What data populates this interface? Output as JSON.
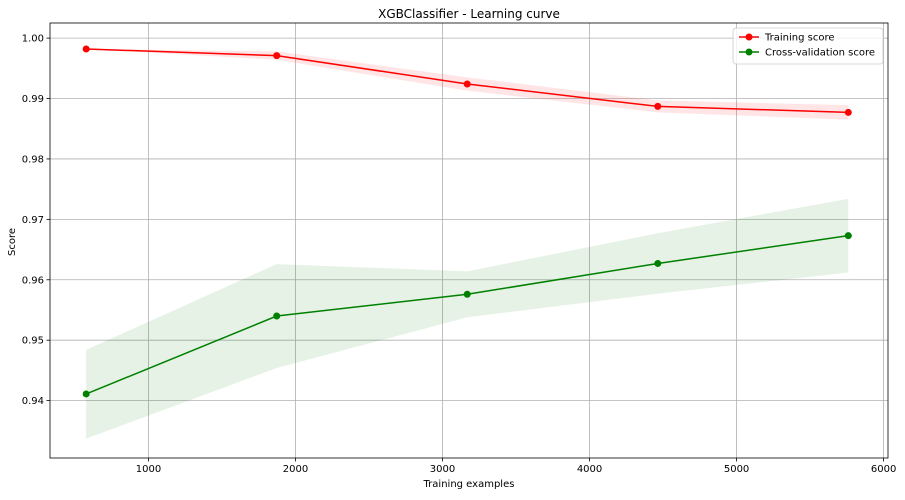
{
  "chart_data": {
    "type": "line",
    "title": "XGBClassifier - Learning curve",
    "xlabel": "Training examples",
    "ylabel": "Score",
    "xlim": [
      330,
      6030
    ],
    "ylim": [
      0.9305,
      1.0025
    ],
    "x_ticks": [
      1000,
      2000,
      3000,
      4000,
      5000,
      6000
    ],
    "x_tick_labels": [
      "1000",
      "2000",
      "3000",
      "4000",
      "5000",
      "6000"
    ],
    "y_ticks": [
      0.94,
      0.95,
      0.96,
      0.97,
      0.98,
      0.99,
      1.0
    ],
    "y_tick_labels": [
      "0.94",
      "0.95",
      "0.96",
      "0.97",
      "0.98",
      "0.99",
      "1.00"
    ],
    "grid": true,
    "legend_position": "top-right",
    "x": [
      576,
      1872,
      3168,
      4464,
      5760
    ],
    "series": [
      {
        "name": "Training score",
        "color": "#ff0000",
        "values": [
          0.9982,
          0.9971,
          0.9924,
          0.9887,
          0.9877
        ],
        "band_lower": [
          0.9982,
          0.9964,
          0.9913,
          0.9877,
          0.9865
        ],
        "band_upper": [
          0.9982,
          0.9978,
          0.9935,
          0.9897,
          0.9889
        ],
        "band_color": "#ff0000"
      },
      {
        "name": "Cross-validation score",
        "color": "#008000",
        "values": [
          0.9411,
          0.954,
          0.9576,
          0.9627,
          0.9673
        ],
        "band_lower": [
          0.9337,
          0.9454,
          0.9538,
          0.9577,
          0.9612
        ],
        "band_upper": [
          0.9484,
          0.9626,
          0.9614,
          0.9677,
          0.9734
        ],
        "band_color": "#008000"
      }
    ]
  }
}
